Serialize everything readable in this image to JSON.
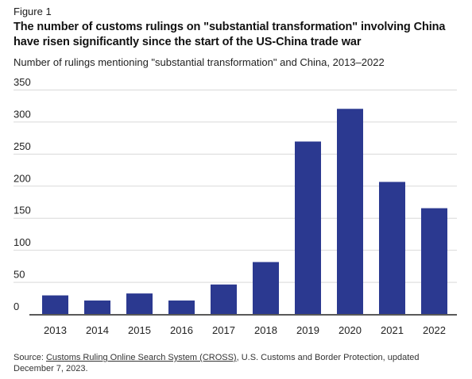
{
  "figure_label": "Figure 1",
  "title": "The number of customs rulings on \"substantial transformation\" involving China have risen significantly since the start of the US-China trade war",
  "subtitle": "Number of rulings mentioning \"substantial transformation\" and China, 2013–2022",
  "source": {
    "prefix": "Source: ",
    "link_text": "Customs Ruling Online Search System (CROSS)",
    "suffix": ", U.S. Customs and Border Protection, updated December 7, 2023."
  },
  "colors": {
    "bar": "#2b3990",
    "grid": "#d9d9d9",
    "axis": "#222222"
  },
  "chart_data": {
    "type": "bar",
    "categories": [
      "2013",
      "2014",
      "2015",
      "2016",
      "2017",
      "2018",
      "2019",
      "2020",
      "2021",
      "2022"
    ],
    "values": [
      29,
      21,
      32,
      21,
      46,
      81,
      269,
      320,
      206,
      165
    ],
    "yticks": [
      0,
      50,
      100,
      150,
      200,
      250,
      300,
      350
    ],
    "ylim": [
      0,
      350
    ],
    "grid": true,
    "legend": "none",
    "xlabel": "",
    "ylabel": ""
  }
}
